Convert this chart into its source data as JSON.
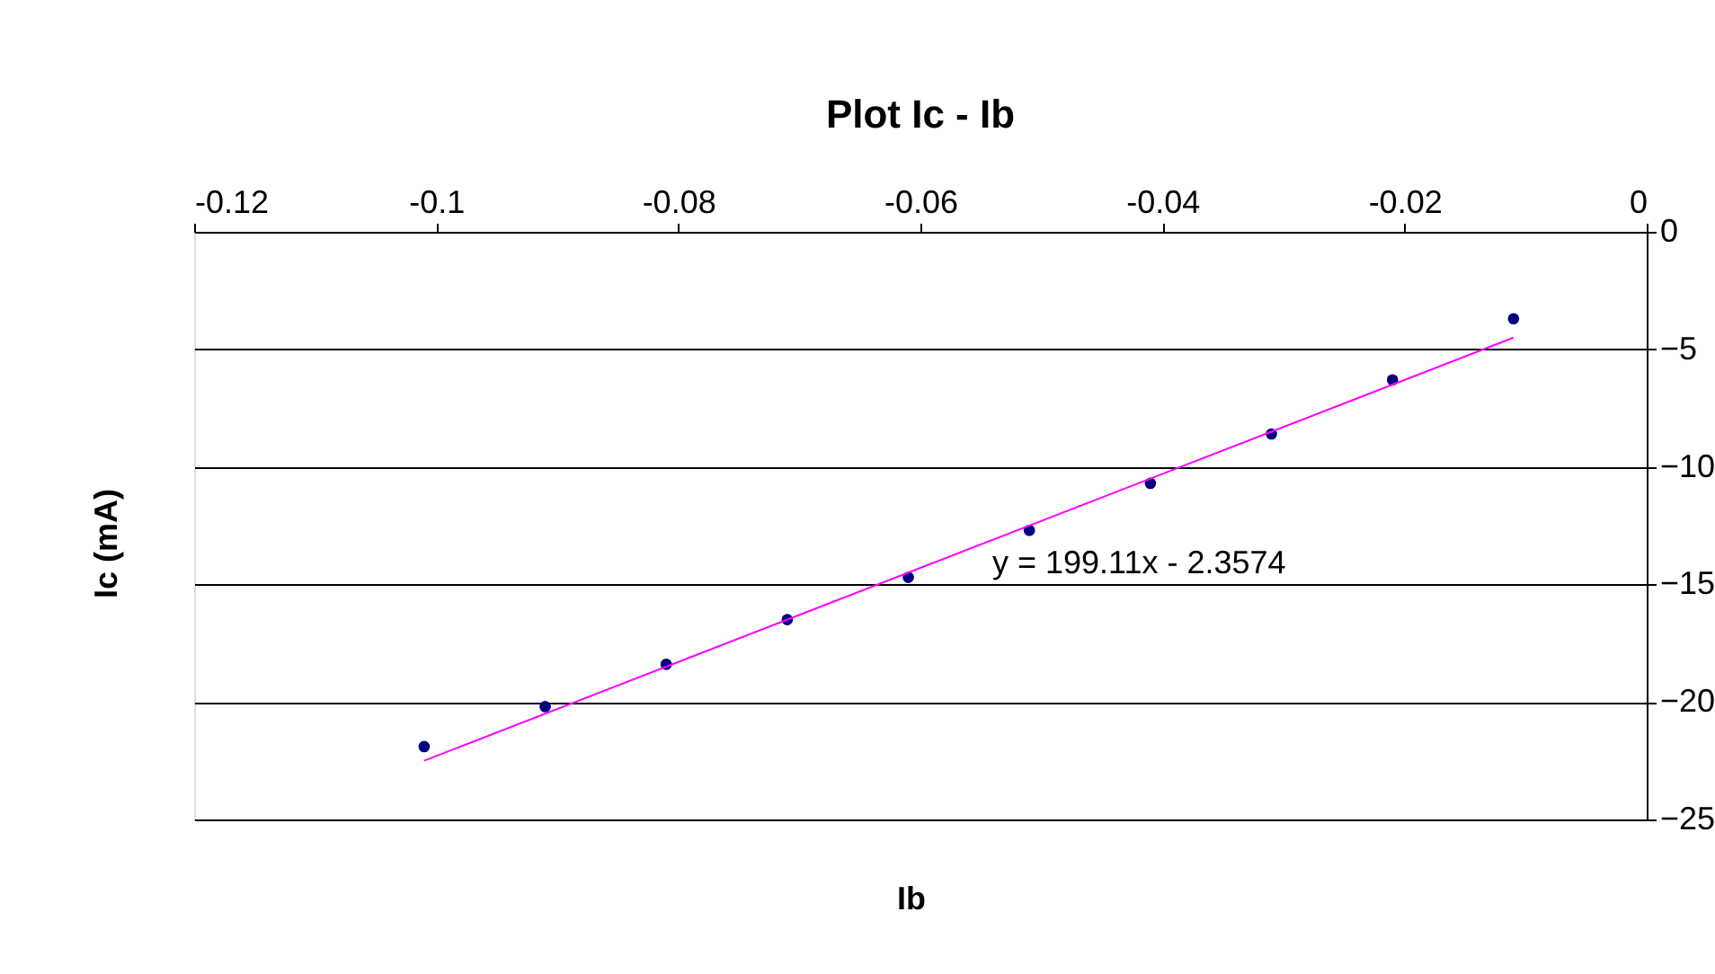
{
  "chart_data": {
    "type": "scatter",
    "title": "Plot Ic - Ib",
    "xlabel": "Ib",
    "ylabel": "Ic (mA)",
    "x": [
      -0.101,
      -0.091,
      -0.081,
      -0.071,
      -0.061,
      -0.051,
      -0.041,
      -0.031,
      -0.021,
      -0.011
    ],
    "series": [
      {
        "color": "#000080",
        "marker": "circle",
        "values": [
          -21.9,
          -20.2,
          -18.4,
          -16.5,
          -14.7,
          -12.7,
          -10.7,
          -8.6,
          -6.3,
          -3.7
        ]
      },
      {
        "type": "line",
        "color": "#ff00ff",
        "marker": "none",
        "line_style": "solid",
        "x": [
          -0.101,
          -0.011
        ],
        "values": [
          -22.5,
          -4.5
        ]
      }
    ],
    "annotations": [
      "y = 199.11x - 2.3574"
    ],
    "xlim": [
      -0.12,
      0
    ],
    "xticks": [
      -0.12,
      -0.1,
      -0.08,
      -0.06,
      -0.04,
      -0.02,
      0
    ],
    "ylim": [
      -25,
      0
    ],
    "yticks": [
      -25,
      -20,
      -15,
      -10,
      -5,
      0
    ],
    "grid": "y"
  }
}
